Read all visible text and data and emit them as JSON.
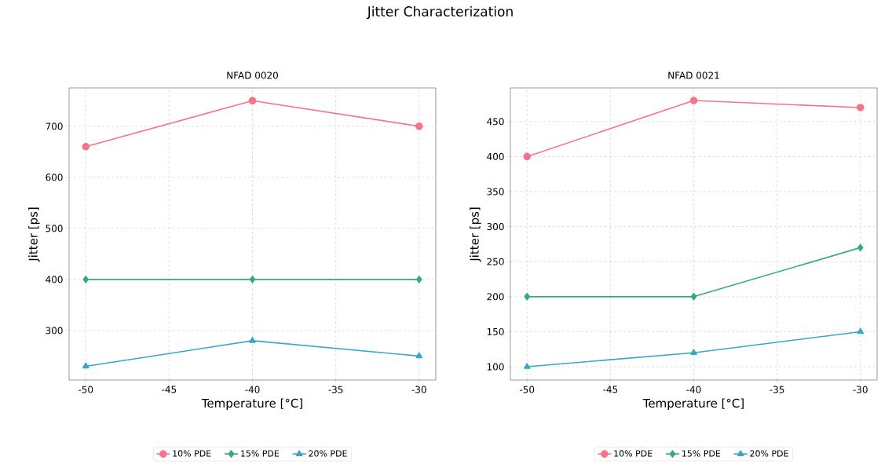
{
  "chart_data": [
    {
      "type": "line",
      "title": "NFAD 0020",
      "annotations": [
        "Jitter Characterization"
      ],
      "xlabel": "Temperature [°C]",
      "ylabel": "Jitter [ps]",
      "x": [
        -50,
        -40,
        -30
      ],
      "series": [
        {
          "name": "10% PDE",
          "color": "#f6738a",
          "marker": "circle",
          "values": [
            660,
            750,
            700
          ]
        },
        {
          "name": "15% PDE",
          "color": "#33ad75",
          "marker": "diamond",
          "values": [
            400,
            400,
            400
          ]
        },
        {
          "name": "20% PDE",
          "color": "#38a7c9",
          "marker": "triangle",
          "values": [
            230,
            280,
            250
          ]
        }
      ],
      "xlim": [
        -51,
        -29
      ],
      "xticks": [
        -50,
        -45,
        -40,
        -35,
        -30
      ],
      "ylim": [
        203,
        775
      ],
      "yticks": [
        300,
        400,
        500,
        600,
        700
      ],
      "grid": true,
      "legend": "bottom",
      "line_style": "solid"
    },
    {
      "type": "line",
      "title": "NFAD 0021",
      "xlabel": "Temperature [°C]",
      "ylabel": "Jitter [ps]",
      "x": [
        -50,
        -40,
        -30
      ],
      "series": [
        {
          "name": "10% PDE",
          "color": "#f6738a",
          "marker": "circle",
          "values": [
            400,
            480,
            470
          ]
        },
        {
          "name": "15% PDE",
          "color": "#33ad75",
          "marker": "diamond",
          "values": [
            200,
            200,
            270
          ]
        },
        {
          "name": "20% PDE",
          "color": "#38a7c9",
          "marker": "triangle",
          "values": [
            100,
            120,
            150
          ]
        }
      ],
      "xlim": [
        -51,
        -29
      ],
      "xticks": [
        -50,
        -45,
        -40,
        -35,
        -30
      ],
      "ylim": [
        81,
        498
      ],
      "yticks": [
        100,
        150,
        200,
        250,
        300,
        350,
        400,
        450
      ],
      "grid": true,
      "legend": "bottom",
      "line_style": "solid"
    }
  ]
}
